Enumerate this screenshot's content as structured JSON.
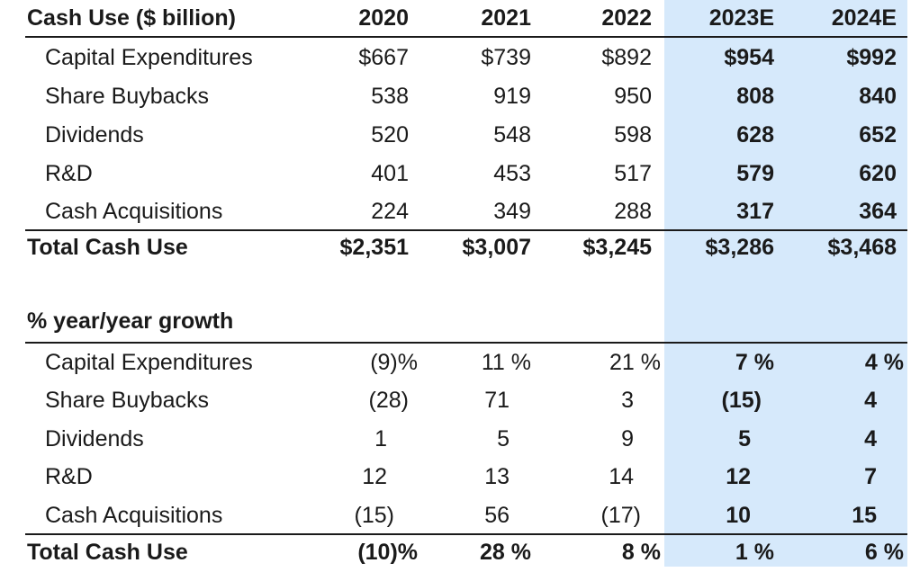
{
  "section1": {
    "title": "Cash Use ($ billion)",
    "years": [
      "2020",
      "2021",
      "2022",
      "2023E",
      "2024E"
    ],
    "rows": [
      {
        "label": "Capital Expenditures",
        "values": [
          "$667",
          "$739",
          "$892",
          "$954",
          "$992"
        ]
      },
      {
        "label": "Share Buybacks",
        "values": [
          "538",
          "919",
          "950",
          "808",
          "840"
        ]
      },
      {
        "label": "Dividends",
        "values": [
          "520",
          "548",
          "598",
          "628",
          "652"
        ]
      },
      {
        "label": "R&D",
        "values": [
          "401",
          "453",
          "517",
          "579",
          "620"
        ]
      },
      {
        "label": "Cash Acquisitions",
        "values": [
          "224",
          "349",
          "288",
          "317",
          "364"
        ]
      }
    ],
    "total": {
      "label": "Total Cash Use",
      "values": [
        "$2,351",
        "$3,007",
        "$3,245",
        "$3,286",
        "$3,468"
      ]
    }
  },
  "section2": {
    "title": "% year/year growth",
    "rows": [
      {
        "label": "Capital Expenditures",
        "values": [
          "(9)%",
          "11 %",
          "21 %",
          "7 %",
          "4 %"
        ]
      },
      {
        "label": "Share Buybacks",
        "values": [
          "(28)",
          "71",
          "3",
          "(15)",
          "4"
        ]
      },
      {
        "label": "Dividends",
        "values": [
          "1",
          "5",
          "9",
          "5",
          "4"
        ]
      },
      {
        "label": "R&D",
        "values": [
          "12",
          "13",
          "14",
          "12",
          "7"
        ]
      },
      {
        "label": "Cash Acquisitions",
        "values": [
          "(15)",
          "56",
          "(17)",
          "10",
          "15"
        ]
      }
    ],
    "total": {
      "label": "Total Cash Use",
      "values": [
        "(10)%",
        "28 %",
        "8 %",
        "1 %",
        "6 %"
      ]
    }
  }
}
